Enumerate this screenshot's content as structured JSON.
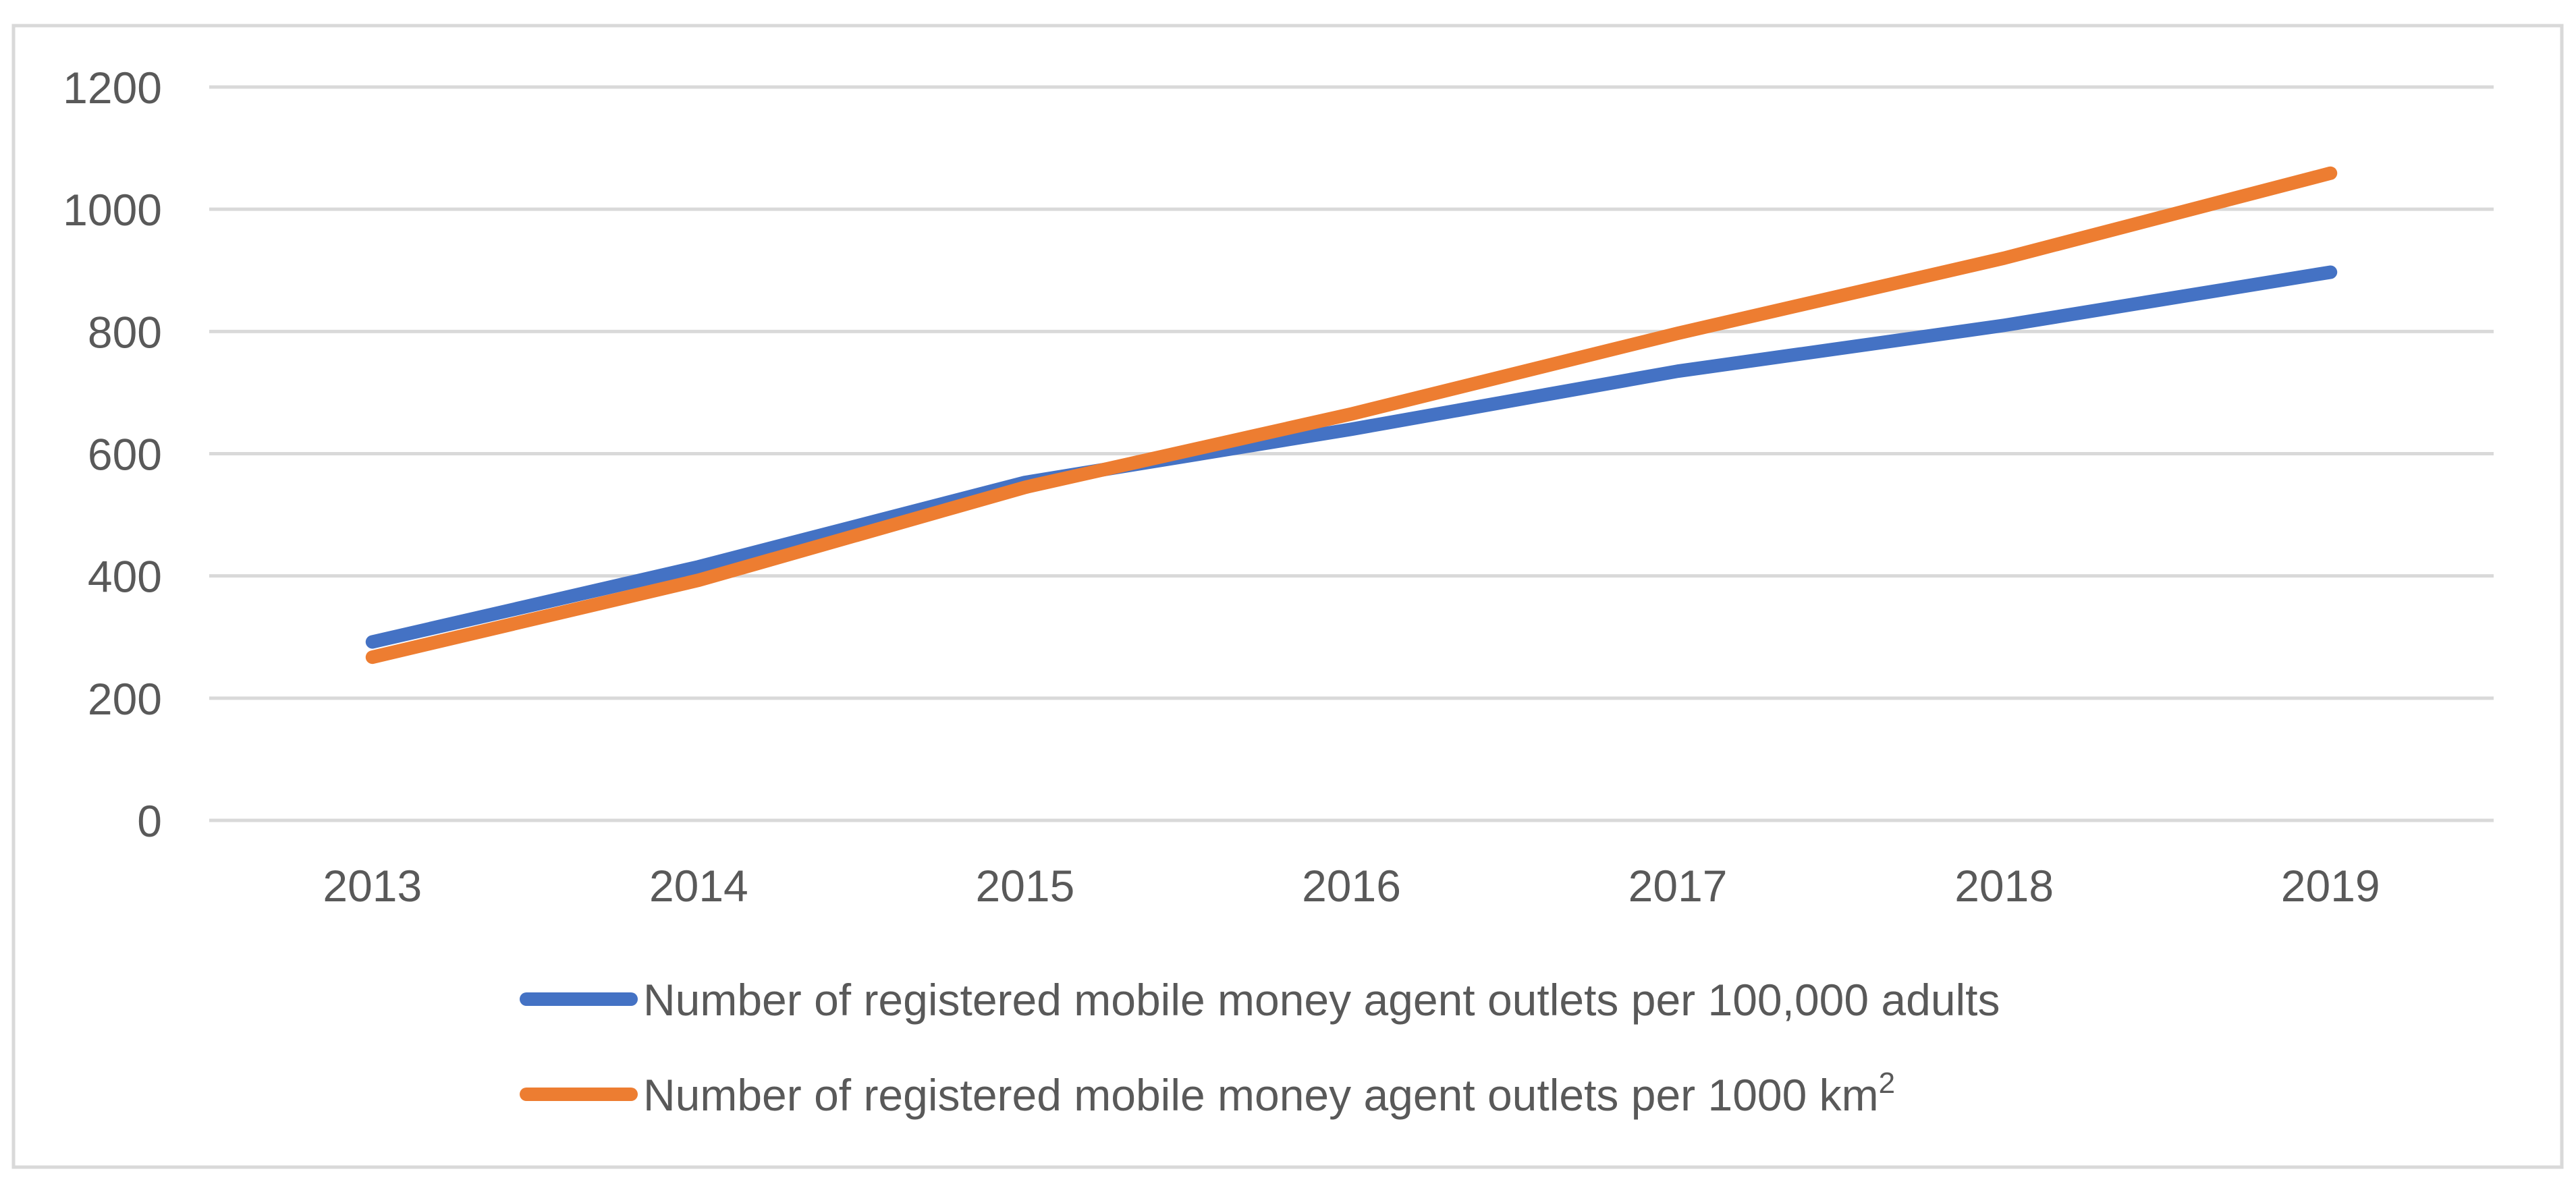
{
  "chart_data": {
    "type": "line",
    "title": "",
    "xlabel": "",
    "ylabel": "",
    "categories": [
      "2013",
      "2014",
      "2015",
      "2016",
      "2017",
      "2018",
      "2019"
    ],
    "ylim": [
      0,
      1200
    ],
    "yticks": [
      0,
      200,
      400,
      600,
      800,
      1000,
      1200
    ],
    "grid": true,
    "legend_position": "bottom",
    "series": [
      {
        "name": "Number of registered mobile money agent outlets per 100,000 adults",
        "legend_text": "Number of registered mobile money agent outlets per 100,000 adults",
        "legend_sup": "",
        "color": "#4472C4",
        "values": [
          292,
          415,
          553,
          640,
          735,
          810,
          897
        ]
      },
      {
        "name": "Number of registered mobile money agent outlets per 1000 km2",
        "legend_text": "Number of registered mobile money agent outlets per 1000 km",
        "legend_sup": "2",
        "color": "#ED7D31",
        "values": [
          267,
          393,
          545,
          665,
          797,
          920,
          1059
        ]
      }
    ]
  },
  "colors": {
    "gridline": "#D9D9D9",
    "text": "#595959",
    "border": "#D9D9D9"
  }
}
